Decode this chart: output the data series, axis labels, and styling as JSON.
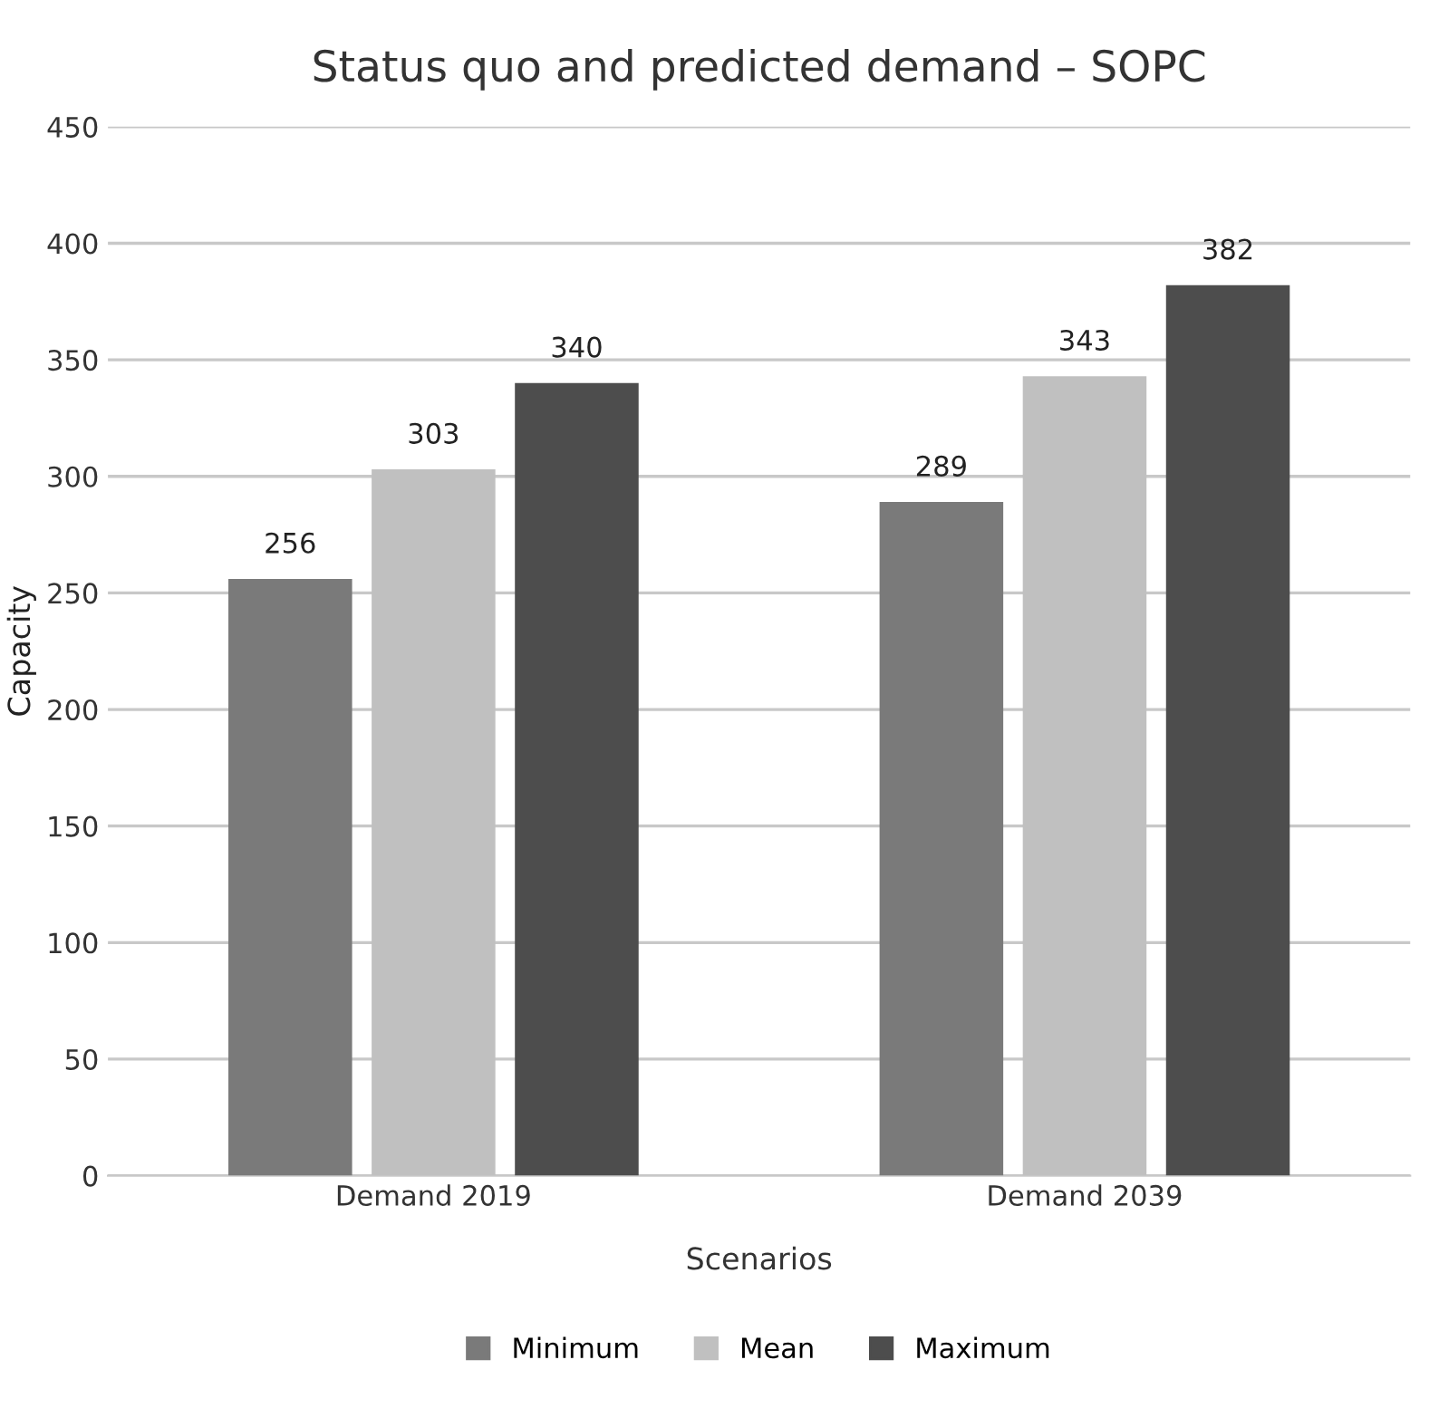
{
  "chart_data": {
    "type": "bar",
    "title": "Status quo and predicted demand – SOPC",
    "xlabel": "Scenarios",
    "ylabel": "Capacity",
    "categories": [
      "Demand 2019",
      "Demand 2039"
    ],
    "series": [
      {
        "name": "Minimum",
        "color": "#7a7a7a",
        "values": [
          256,
          289
        ]
      },
      {
        "name": "Mean",
        "color": "#c0c0c0",
        "values": [
          303,
          343
        ]
      },
      {
        "name": "Maximum",
        "color": "#4d4d4d",
        "values": [
          340,
          382
        ]
      }
    ],
    "ylim": [
      0,
      450
    ],
    "yticks": [
      0,
      50,
      100,
      150,
      200,
      250,
      300,
      350,
      400,
      450
    ],
    "grid": "y",
    "legend": "bottom",
    "data_labels": true
  }
}
